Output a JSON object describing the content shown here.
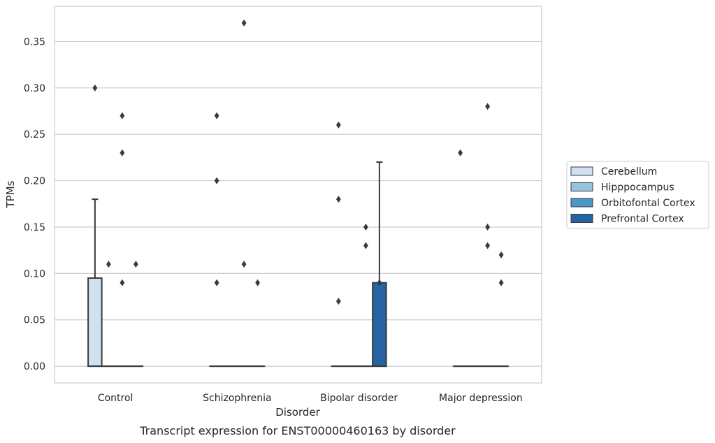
{
  "caption": "Transcript expression for ENST00000460163 by disorder",
  "colors": {
    "Cerebellum": "#d0e1f2",
    "Hipppocampus": "#94c4df",
    "Orbitofontal Cortex": "#4a98c9",
    "Prefrontal Cortex": "#2563a4",
    "grid": "#cccccc",
    "edge": "#3a3a3a"
  },
  "chart_data": {
    "type": "box",
    "xlabel": "Disorder",
    "ylabel": "TPMs",
    "categories": [
      "Control",
      "Schizophrenia",
      "Bipolar disorder",
      "Major depression"
    ],
    "ylim": [
      -0.018,
      0.388
    ],
    "yticks": [
      "0.00",
      "0.05",
      "0.10",
      "0.15",
      "0.20",
      "0.25",
      "0.30",
      "0.35"
    ],
    "grid": true,
    "legend_position": "right",
    "series": [
      {
        "name": "Cerebellum",
        "boxes": [
          {
            "q1": 0,
            "median": 0,
            "q3": 0.095,
            "whisker_low": 0,
            "whisker_high": 0.18,
            "outliers": [
              0.3
            ]
          },
          {
            "q1": 0,
            "median": 0,
            "q3": 0,
            "whisker_low": 0,
            "whisker_high": 0,
            "outliers": [
              0.27,
              0.2,
              0.09
            ]
          },
          {
            "q1": 0,
            "median": 0,
            "q3": 0,
            "whisker_low": 0,
            "whisker_high": 0,
            "outliers": [
              0.26,
              0.18,
              0.07
            ]
          },
          {
            "q1": 0,
            "median": 0,
            "q3": 0,
            "whisker_low": 0,
            "whisker_high": 0,
            "outliers": [
              0.23
            ]
          }
        ]
      },
      {
        "name": "Hipppocampus",
        "boxes": [
          {
            "q1": 0,
            "median": 0,
            "q3": 0,
            "whisker_low": 0,
            "whisker_high": 0,
            "outliers": [
              0.11
            ]
          },
          {
            "q1": 0,
            "median": 0,
            "q3": 0,
            "whisker_low": 0,
            "whisker_high": 0,
            "outliers": []
          },
          {
            "q1": 0,
            "median": 0,
            "q3": 0,
            "whisker_low": 0,
            "whisker_high": 0,
            "outliers": []
          },
          {
            "q1": 0,
            "median": 0,
            "q3": 0,
            "whisker_low": 0,
            "whisker_high": 0,
            "outliers": []
          }
        ]
      },
      {
        "name": "Orbitofontal Cortex",
        "boxes": [
          {
            "q1": 0,
            "median": 0,
            "q3": 0,
            "whisker_low": 0,
            "whisker_high": 0,
            "outliers": [
              0.27,
              0.23,
              0.09
            ]
          },
          {
            "q1": 0,
            "median": 0,
            "q3": 0,
            "whisker_low": 0,
            "whisker_high": 0,
            "outliers": [
              0.37,
              0.11
            ]
          },
          {
            "q1": 0,
            "median": 0,
            "q3": 0,
            "whisker_low": 0,
            "whisker_high": 0,
            "outliers": [
              0.15,
              0.13
            ]
          },
          {
            "q1": 0,
            "median": 0,
            "q3": 0,
            "whisker_low": 0,
            "whisker_high": 0,
            "outliers": [
              0.28,
              0.15,
              0.13
            ]
          }
        ]
      },
      {
        "name": "Prefrontal Cortex",
        "boxes": [
          {
            "q1": 0,
            "median": 0,
            "q3": 0,
            "whisker_low": 0,
            "whisker_high": 0,
            "outliers": [
              0.11
            ]
          },
          {
            "q1": 0,
            "median": 0,
            "q3": 0,
            "whisker_low": 0,
            "whisker_high": 0,
            "outliers": [
              0.09
            ]
          },
          {
            "q1": 0,
            "median": 0,
            "q3": 0.09,
            "whisker_low": 0,
            "whisker_high": 0.22,
            "outliers": [
              0.09
            ]
          },
          {
            "q1": 0,
            "median": 0,
            "q3": 0,
            "whisker_low": 0,
            "whisker_high": 0,
            "outliers": [
              0.12,
              0.09
            ]
          }
        ]
      }
    ]
  }
}
